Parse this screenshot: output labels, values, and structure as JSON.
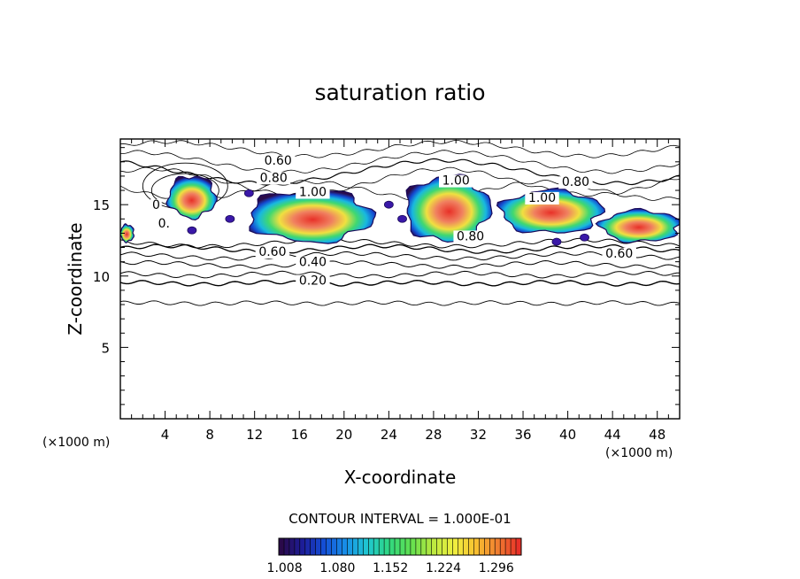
{
  "chart_data": {
    "type": "contour",
    "title": "saturation ratio",
    "xlabel": "X-coordinate",
    "ylabel": "Z-coordinate",
    "x_unit": "(×1000 m)",
    "z_unit": "(×1000 m)",
    "xlim": [
      0,
      50
    ],
    "ylim": [
      0,
      19.6
    ],
    "x_ticks": [
      "4",
      "8",
      "12",
      "16",
      "20",
      "24",
      "28",
      "32",
      "36",
      "40",
      "44",
      "48"
    ],
    "y_ticks": [
      "5",
      "10",
      "15"
    ],
    "contour_interval_text": "CONTOUR INTERVAL = 1.000E-01",
    "contour_labels": [
      {
        "text": "0.60",
        "x": 14.1,
        "z": 17.8
      },
      {
        "text": "0.80",
        "x": 13.7,
        "z": 16.6
      },
      {
        "text": "1.00",
        "x": 17.2,
        "z": 15.6
      },
      {
        "text": "1.00",
        "x": 30.0,
        "z": 16.4
      },
      {
        "text": "0.80",
        "x": 40.7,
        "z": 16.3
      },
      {
        "text": "1.00",
        "x": 37.7,
        "z": 15.2
      },
      {
        "text": "0.80",
        "x": 31.3,
        "z": 12.5
      },
      {
        "text": "0.60",
        "x": 13.6,
        "z": 11.4
      },
      {
        "text": "0.40",
        "x": 17.2,
        "z": 10.7
      },
      {
        "text": "0.20",
        "x": 17.2,
        "z": 9.4
      },
      {
        "text": "0.60",
        "x": 44.6,
        "z": 11.3
      },
      {
        "text": "0",
        "x": 3.2,
        "z": 14.7
      },
      {
        "text": "0.",
        "x": 3.9,
        "z": 13.4
      }
    ],
    "filled_regions_supersaturation": [
      {
        "x": [
          4.3,
          8.5
        ],
        "z": [
          14.1,
          17.0
        ],
        "peak": 1.3
      },
      {
        "x": [
          11.5,
          22.5
        ],
        "z": [
          12.4,
          16.0
        ],
        "peak": 1.3
      },
      {
        "x": [
          25.5,
          33.0
        ],
        "z": [
          12.4,
          17.0
        ],
        "peak": 1.3
      },
      {
        "x": [
          34.0,
          43.0
        ],
        "z": [
          13.0,
          16.0
        ],
        "peak": 1.28
      },
      {
        "x": [
          43.0,
          50.0
        ],
        "z": [
          12.4,
          14.6
        ],
        "peak": 1.28
      },
      {
        "x": [
          0.0,
          1.2
        ],
        "z": [
          12.4,
          13.6
        ],
        "peak": 1.25
      }
    ],
    "colorbar": {
      "tick_labels": [
        "1.008",
        "1.080",
        "1.152",
        "1.224",
        "1.296"
      ],
      "range": [
        1.0,
        1.33
      ],
      "colors": [
        "#2a0a4a",
        "#1d1d9a",
        "#1450d8",
        "#1890e8",
        "#20c8d0",
        "#30d880",
        "#60e050",
        "#b8e840",
        "#f0f040",
        "#f8c030",
        "#f08030",
        "#e83028"
      ]
    }
  }
}
